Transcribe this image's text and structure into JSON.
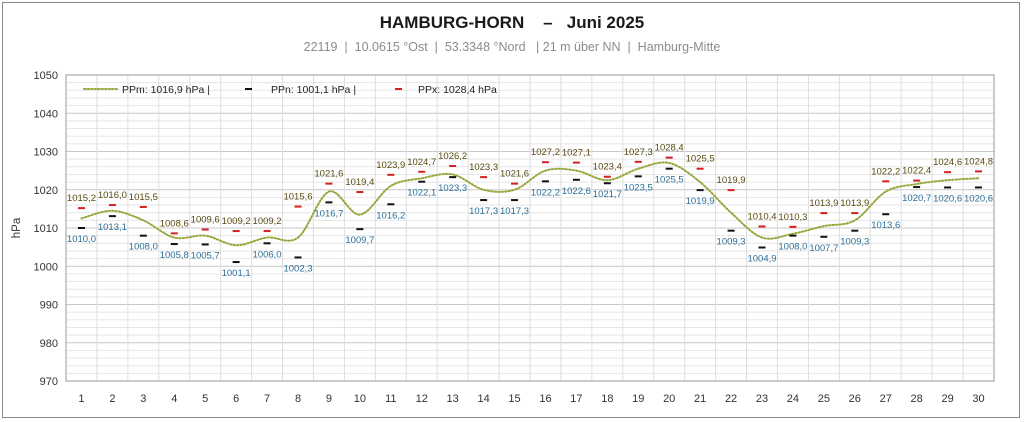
{
  "header": {
    "title": "HAMBURG-HORN    –   Juni 2025",
    "subtitle": "22119  |  10.0615 °Ost  |  53.3348 °Nord   | 21 m über NN  |  Hamburg-Mitte"
  },
  "colors": {
    "mean_line": "#9aa63c",
    "min_marker": "#111111",
    "max_marker": "#d42020",
    "grid": "#d4d4d4",
    "min_label": "#2e6f98",
    "max_label": "#5a4a10"
  },
  "chart_data": {
    "type": "line",
    "title": "HAMBURG-HORN – Juni 2025",
    "ylabel": "hPa",
    "xlabel": "",
    "ylim": [
      970,
      1050
    ],
    "yticks": [
      970,
      980,
      990,
      1000,
      1010,
      1020,
      1030,
      1040,
      1050
    ],
    "grid": true,
    "legend_position": "top-left",
    "x": [
      1,
      2,
      3,
      4,
      5,
      6,
      7,
      8,
      9,
      10,
      11,
      12,
      13,
      14,
      15,
      16,
      17,
      18,
      19,
      20,
      21,
      22,
      23,
      24,
      25,
      26,
      27,
      28,
      29,
      30
    ],
    "series": [
      {
        "name": "PPm",
        "legend_label": "PPm: 1016,9 hPa  |",
        "style": "dotted-line",
        "values": [
          1012.5,
          1014.5,
          1012.0,
          1007.5,
          1008.0,
          1005.5,
          1007.5,
          1007.5,
          1019.5,
          1013.5,
          1021.0,
          1023.0,
          1024.0,
          1020.0,
          1020.0,
          1025.0,
          1025.0,
          1022.5,
          1025.5,
          1027.0,
          1022.0,
          1014.0,
          1007.5,
          1008.5,
          1010.5,
          1012.0,
          1019.5,
          1021.5,
          1022.5,
          1023.0
        ]
      },
      {
        "name": "PPn",
        "legend_label": "PPn: 1001,1 hPa  |",
        "style": "dash-marker",
        "values": [
          1010.0,
          1013.1,
          1008.0,
          1005.8,
          1005.7,
          1001.1,
          1006.0,
          1002.3,
          1016.7,
          1009.7,
          1016.2,
          1022.1,
          1023.3,
          1017.3,
          1017.3,
          1022.2,
          1022.6,
          1021.7,
          1023.5,
          1025.5,
          1019.9,
          1009.3,
          1004.9,
          1008.0,
          1007.7,
          1009.3,
          1013.6,
          1020.7,
          1020.6,
          1020.6
        ],
        "labels": [
          "1010,0",
          "1013,1",
          "1008,0",
          "1005,8",
          "1005,7",
          "1001,1",
          "1006,0",
          "1002,3",
          "1016,7",
          "1009,7",
          "1016,2",
          "1022,1",
          "1023,3",
          "1017,3",
          "1017,3",
          "1022,2",
          "1022,6",
          "1021,7",
          "1023,5",
          "1025,5",
          "1019,9",
          "1009,3",
          "1004,9",
          "1008,0",
          "1007,7",
          "1009,3",
          "1013,6",
          "1020,7",
          "1020,6",
          "1020,6"
        ]
      },
      {
        "name": "PPx",
        "legend_label": "PPx: 1028,4 hPa",
        "style": "dash-marker",
        "values": [
          1015.2,
          1016.0,
          1015.5,
          1008.6,
          1009.6,
          1009.2,
          1009.2,
          1015.6,
          1021.6,
          1019.4,
          1023.9,
          1024.7,
          1026.2,
          1023.3,
          1021.6,
          1027.2,
          1027.1,
          1023.4,
          1027.3,
          1028.4,
          1025.5,
          1019.9,
          1010.4,
          1010.3,
          1013.9,
          1013.9,
          1022.2,
          1022.4,
          1024.6,
          1024.8
        ],
        "labels": [
          "1015,2",
          "1016,0",
          "1015,5",
          "1008,6",
          "1009,6",
          "1009,2",
          "1009,2",
          "1015,6",
          "1021,6",
          "1019,4",
          "1023,9",
          "1024,7",
          "1026,2",
          "1023,3",
          "1021,6",
          "1027,2",
          "1027,1",
          "1023,4",
          "1027,3",
          "1028,4",
          "1025,5",
          "1019,9",
          "1010,4",
          "1010,3",
          "1013,9",
          "1013,9",
          "1022,2",
          "1022,4",
          "1024,6",
          "1024,8"
        ]
      }
    ]
  }
}
